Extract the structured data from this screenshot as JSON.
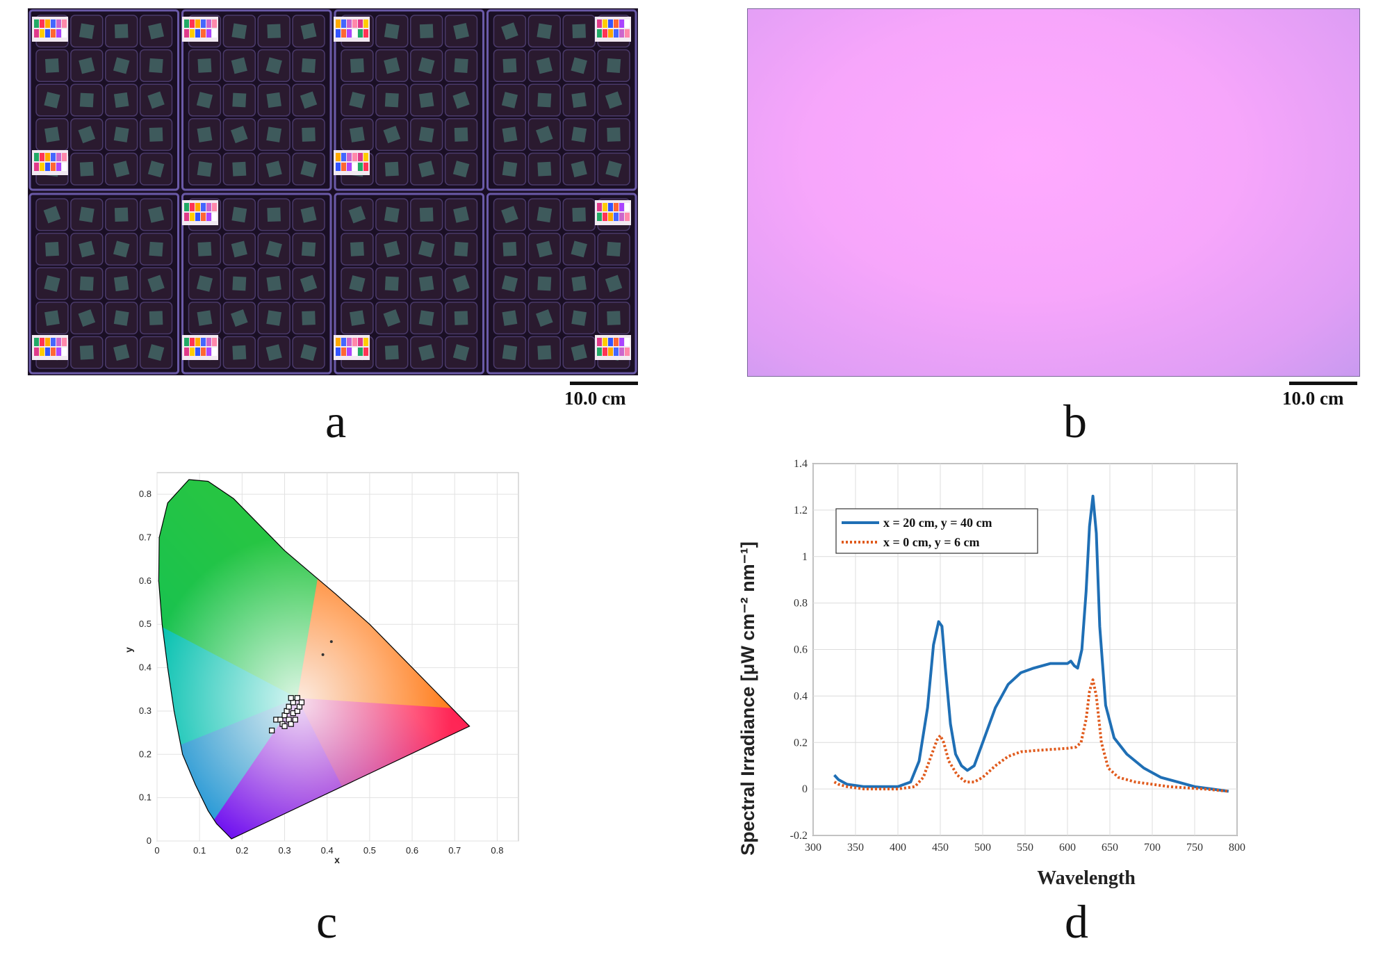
{
  "figure": {
    "panels": [
      {
        "letter": "a",
        "scale_label": "10.0 cm"
      },
      {
        "letter": "b",
        "scale_label": "10.0 cm"
      },
      {
        "letter": "c"
      },
      {
        "letter": "d"
      }
    ]
  },
  "colors": {
    "tray_bg": "#1a0f24",
    "tray_grid": "#6a5aa8",
    "pot": "#2a1a2f",
    "leaf": "#3e5a5c",
    "light_field": "#f7a6fb",
    "series_blue": "#1f6fb5",
    "series_orange": "#e05a1c"
  },
  "chart_data": [
    {
      "type": "scatter",
      "panel": "c",
      "xlabel": "x",
      "ylabel": "y",
      "xlim": [
        0,
        0.85
      ],
      "ylim": [
        0,
        0.85
      ],
      "xticks": [
        "0",
        "0.1",
        "0.2",
        "0.3",
        "0.4",
        "0.5",
        "0.6",
        "0.7",
        "0.8"
      ],
      "yticks": [
        "0",
        "0.1",
        "0.2",
        "0.3",
        "0.4",
        "0.5",
        "0.6",
        "0.7",
        "0.8"
      ],
      "grid": true,
      "background": "chromaticity diagram",
      "points": [
        {
          "x": 0.27,
          "y": 0.255
        },
        {
          "x": 0.28,
          "y": 0.28
        },
        {
          "x": 0.29,
          "y": 0.28
        },
        {
          "x": 0.295,
          "y": 0.27
        },
        {
          "x": 0.3,
          "y": 0.29
        },
        {
          "x": 0.3,
          "y": 0.265
        },
        {
          "x": 0.305,
          "y": 0.3
        },
        {
          "x": 0.31,
          "y": 0.28
        },
        {
          "x": 0.31,
          "y": 0.31
        },
        {
          "x": 0.315,
          "y": 0.27
        },
        {
          "x": 0.32,
          "y": 0.295
        },
        {
          "x": 0.32,
          "y": 0.32
        },
        {
          "x": 0.325,
          "y": 0.28
        },
        {
          "x": 0.33,
          "y": 0.3
        },
        {
          "x": 0.33,
          "y": 0.33
        },
        {
          "x": 0.335,
          "y": 0.31
        },
        {
          "x": 0.34,
          "y": 0.32
        },
        {
          "x": 0.315,
          "y": 0.33
        }
      ],
      "markers": [
        {
          "x": 0.39,
          "y": 0.43
        },
        {
          "x": 0.41,
          "y": 0.46
        }
      ]
    },
    {
      "type": "line",
      "panel": "d",
      "xlabel": "Wavelength",
      "ylabel": "Spectral Irradiance [μW cm⁻² nm⁻¹]",
      "xlim": [
        300,
        800
      ],
      "ylim": [
        -0.2,
        1.4
      ],
      "xticks": [
        "300",
        "350",
        "400",
        "450",
        "500",
        "550",
        "600",
        "650",
        "700",
        "750",
        "800"
      ],
      "yticks": [
        "-0.2",
        "0",
        "0.2",
        "0.4",
        "0.6",
        "0.8",
        "1",
        "1.2",
        "1.4"
      ],
      "grid": true,
      "legend_position": "top-left",
      "series": [
        {
          "name": "x = 20 cm,  y = 40 cm",
          "style": "solid",
          "x": [
            325,
            330,
            340,
            360,
            400,
            415,
            425,
            435,
            442,
            448,
            452,
            456,
            462,
            468,
            475,
            482,
            490,
            500,
            515,
            530,
            545,
            560,
            580,
            600,
            604,
            608,
            612,
            617,
            622,
            626,
            630,
            634,
            638,
            645,
            655,
            670,
            690,
            710,
            730,
            750,
            770,
            790
          ],
          "y": [
            0.06,
            0.04,
            0.02,
            0.01,
            0.01,
            0.03,
            0.12,
            0.35,
            0.62,
            0.72,
            0.7,
            0.52,
            0.28,
            0.15,
            0.1,
            0.08,
            0.1,
            0.2,
            0.35,
            0.45,
            0.5,
            0.52,
            0.54,
            0.54,
            0.55,
            0.53,
            0.52,
            0.6,
            0.85,
            1.13,
            1.26,
            1.1,
            0.7,
            0.36,
            0.22,
            0.15,
            0.09,
            0.05,
            0.03,
            0.01,
            0.0,
            -0.01
          ]
        },
        {
          "name": "x = 0 cm,  y = 6 cm",
          "style": "dotted",
          "x": [
            325,
            330,
            340,
            360,
            400,
            420,
            430,
            440,
            446,
            450,
            454,
            460,
            470,
            480,
            490,
            500,
            515,
            530,
            545,
            560,
            580,
            600,
            610,
            616,
            622,
            626,
            630,
            634,
            640,
            648,
            660,
            680,
            700,
            720,
            740,
            760,
            790
          ],
          "y": [
            0.03,
            0.02,
            0.01,
            0.0,
            0.0,
            0.01,
            0.05,
            0.15,
            0.21,
            0.23,
            0.2,
            0.12,
            0.06,
            0.03,
            0.03,
            0.05,
            0.1,
            0.14,
            0.16,
            0.165,
            0.17,
            0.175,
            0.18,
            0.2,
            0.3,
            0.42,
            0.47,
            0.4,
            0.2,
            0.09,
            0.05,
            0.03,
            0.02,
            0.01,
            0.005,
            0.0,
            -0.01
          ]
        }
      ]
    }
  ]
}
